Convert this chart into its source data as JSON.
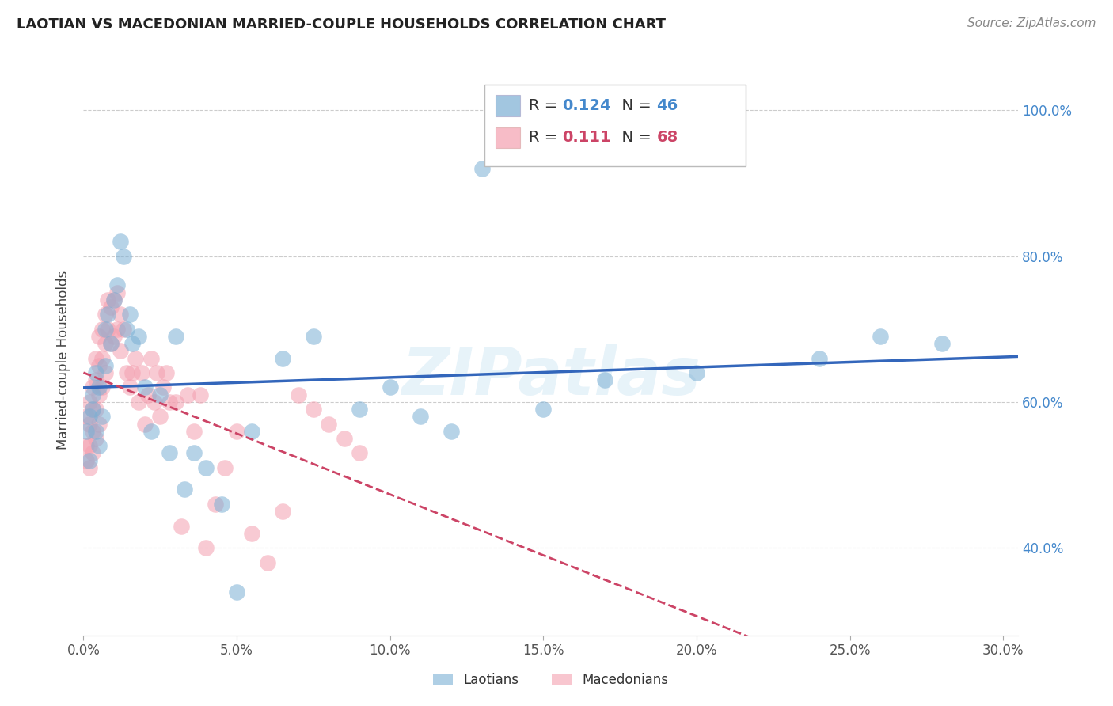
{
  "title": "LAOTIAN VS MACEDONIAN MARRIED-COUPLE HOUSEHOLDS CORRELATION CHART",
  "source": "Source: ZipAtlas.com",
  "ylabel": "Married-couple Households",
  "xlim": [
    0.0,
    0.305
  ],
  "ylim": [
    0.28,
    1.035
  ],
  "xticks": [
    0.0,
    0.05,
    0.1,
    0.15,
    0.2,
    0.25,
    0.3
  ],
  "xticklabels": [
    "0.0%",
    "5.0%",
    "10.0%",
    "15.0%",
    "20.0%",
    "25.0%",
    "30.0%"
  ],
  "yticks": [
    0.4,
    0.6,
    0.8,
    1.0
  ],
  "yticklabels": [
    "40.0%",
    "60.0%",
    "80.0%",
    "100.0%"
  ],
  "laotians_R": "0.124",
  "laotians_N": "46",
  "macedonians_R": "0.111",
  "macedonians_N": "68",
  "laotian_color": "#7BAFD4",
  "macedonian_color": "#F4A0B0",
  "laotian_line_color": "#3366BB",
  "macedonian_line_color": "#CC4466",
  "watermark": "ZIPatlas",
  "laotian_x": [
    0.001,
    0.002,
    0.002,
    0.003,
    0.003,
    0.004,
    0.004,
    0.005,
    0.005,
    0.006,
    0.007,
    0.007,
    0.008,
    0.009,
    0.01,
    0.011,
    0.012,
    0.013,
    0.014,
    0.015,
    0.016,
    0.018,
    0.02,
    0.022,
    0.025,
    0.028,
    0.03,
    0.033,
    0.036,
    0.04,
    0.045,
    0.05,
    0.055,
    0.065,
    0.075,
    0.09,
    0.1,
    0.11,
    0.12,
    0.13,
    0.15,
    0.17,
    0.2,
    0.24,
    0.26,
    0.28
  ],
  "laotian_y": [
    0.56,
    0.58,
    0.52,
    0.59,
    0.61,
    0.64,
    0.56,
    0.62,
    0.54,
    0.58,
    0.7,
    0.65,
    0.72,
    0.68,
    0.74,
    0.76,
    0.82,
    0.8,
    0.7,
    0.72,
    0.68,
    0.69,
    0.62,
    0.56,
    0.61,
    0.53,
    0.69,
    0.48,
    0.53,
    0.51,
    0.46,
    0.34,
    0.56,
    0.66,
    0.69,
    0.59,
    0.62,
    0.58,
    0.56,
    0.92,
    0.59,
    0.63,
    0.64,
    0.66,
    0.69,
    0.68
  ],
  "macedonian_x": [
    0.001,
    0.001,
    0.001,
    0.002,
    0.002,
    0.002,
    0.002,
    0.003,
    0.003,
    0.003,
    0.003,
    0.004,
    0.004,
    0.004,
    0.004,
    0.005,
    0.005,
    0.005,
    0.005,
    0.006,
    0.006,
    0.006,
    0.007,
    0.007,
    0.007,
    0.008,
    0.008,
    0.009,
    0.009,
    0.01,
    0.01,
    0.011,
    0.011,
    0.012,
    0.012,
    0.013,
    0.014,
    0.015,
    0.016,
    0.017,
    0.018,
    0.019,
    0.02,
    0.021,
    0.022,
    0.023,
    0.024,
    0.025,
    0.026,
    0.027,
    0.028,
    0.03,
    0.032,
    0.034,
    0.036,
    0.038,
    0.04,
    0.043,
    0.046,
    0.05,
    0.055,
    0.06,
    0.065,
    0.07,
    0.075,
    0.08,
    0.085,
    0.09
  ],
  "macedonian_y": [
    0.54,
    0.58,
    0.52,
    0.6,
    0.57,
    0.54,
    0.51,
    0.62,
    0.59,
    0.56,
    0.53,
    0.66,
    0.63,
    0.59,
    0.55,
    0.69,
    0.65,
    0.61,
    0.57,
    0.7,
    0.66,
    0.62,
    0.72,
    0.68,
    0.64,
    0.74,
    0.7,
    0.73,
    0.68,
    0.74,
    0.69,
    0.75,
    0.7,
    0.72,
    0.67,
    0.7,
    0.64,
    0.62,
    0.64,
    0.66,
    0.6,
    0.64,
    0.57,
    0.61,
    0.66,
    0.6,
    0.64,
    0.58,
    0.62,
    0.64,
    0.6,
    0.6,
    0.43,
    0.61,
    0.56,
    0.61,
    0.4,
    0.46,
    0.51,
    0.56,
    0.42,
    0.38,
    0.45,
    0.61,
    0.59,
    0.57,
    0.55,
    0.53
  ]
}
